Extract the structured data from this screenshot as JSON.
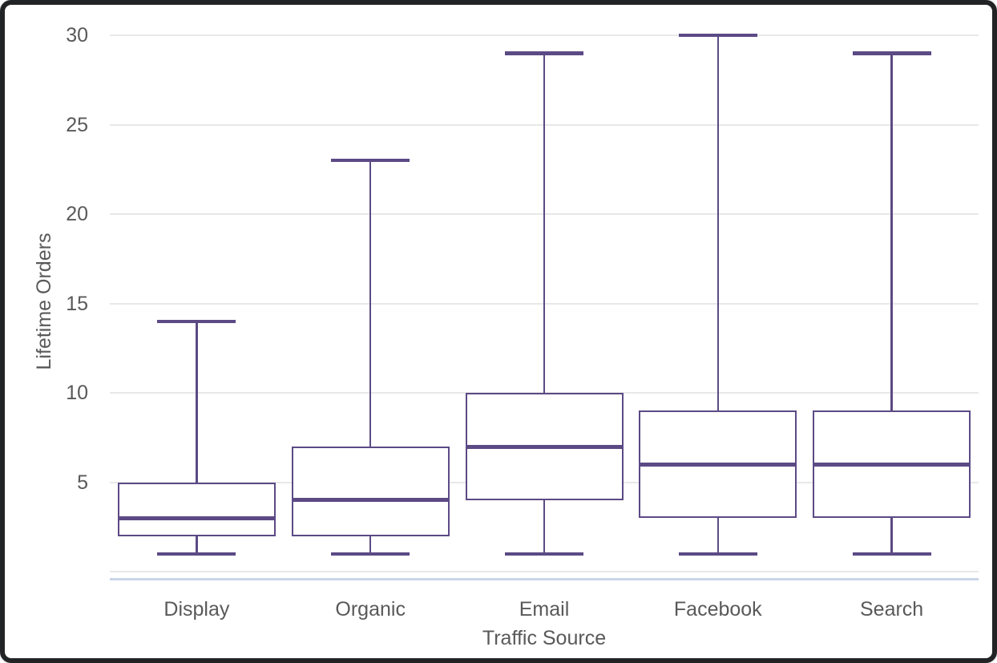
{
  "chart_data": {
    "type": "boxplot",
    "title": "",
    "xlabel": "Traffic Source",
    "ylabel": "Lifetime Orders",
    "categories": [
      "Display",
      "Organic",
      "Email",
      "Facebook",
      "Search"
    ],
    "series": [
      {
        "name": "Display",
        "min": 1,
        "q1": 2,
        "median": 3,
        "q3": 5,
        "max": 14
      },
      {
        "name": "Organic",
        "min": 1,
        "q1": 2,
        "median": 4,
        "q3": 7,
        "max": 23
      },
      {
        "name": "Email",
        "min": 1,
        "q1": 4,
        "median": 7,
        "q3": 10,
        "max": 29
      },
      {
        "name": "Facebook",
        "min": 1,
        "q1": 3,
        "median": 6,
        "q3": 9,
        "max": 30
      },
      {
        "name": "Search",
        "min": 1,
        "q1": 3,
        "median": 6,
        "q3": 9,
        "max": 29
      }
    ],
    "yticks": [
      5,
      10,
      15,
      20,
      25,
      30
    ],
    "gridline_values": [
      0,
      5,
      10,
      15,
      20,
      25,
      30
    ],
    "ylim": [
      -0.44,
      31.08
    ],
    "grid": true,
    "legend": "none",
    "colors": {
      "box_stroke": "#5c4a85",
      "box_fill": "#ffffff",
      "gridline": "#e8e8e8",
      "axis_line": "#c9d5e8",
      "label_text": "#595959",
      "frame_border": "#212325",
      "background": "#ffffff"
    }
  }
}
